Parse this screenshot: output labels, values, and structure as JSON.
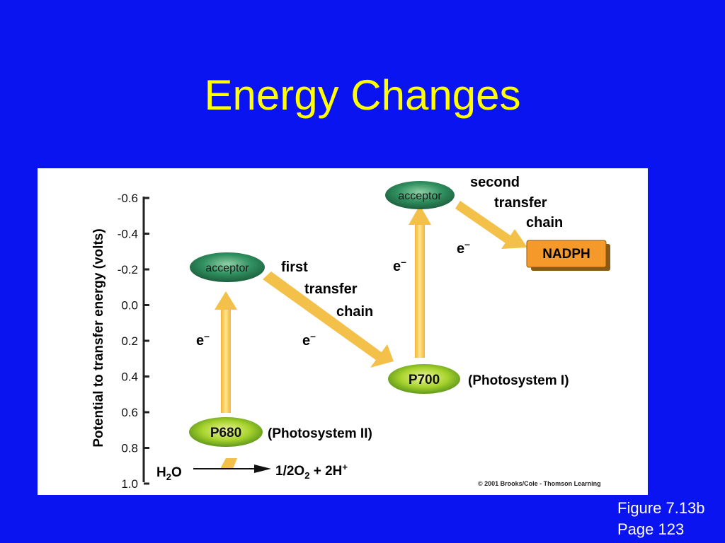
{
  "slide": {
    "title": "Energy Changes",
    "caption_line1": "Figure 7.13b",
    "caption_line2": "Page 123"
  },
  "colors": {
    "background": "#0a14f0",
    "title": "#ffff00",
    "arrow": "#f7c948",
    "acceptor": "#2f8f5f",
    "photosystem": "#a6d22c",
    "nadph_box": "#f59a2a"
  },
  "diagram": {
    "y_axis_label": "Potential to transfer energy (volts)",
    "y_ticks": [
      "-0.6",
      "-0.4",
      "-0.2",
      "0.0",
      "0.2",
      "0.4",
      "0.6",
      "0.8",
      "1.0"
    ],
    "acceptor1_label": "acceptor",
    "acceptor2_label": "acceptor",
    "p680_label": "P680",
    "p700_label": "P700",
    "photosystem2_label": "(Photosystem II)",
    "photosystem1_label": "(Photosystem I)",
    "first_chain": [
      "first",
      "transfer",
      "chain"
    ],
    "second_chain": [
      "second",
      "transfer",
      "chain"
    ],
    "electron": "e",
    "electron_sup": "–",
    "nadph_label": "NADPH",
    "water_main": "H",
    "water_sub": "2",
    "water_end": "O",
    "products_a": "1/2O",
    "products_sub": "2",
    "products_b": " + 2H",
    "products_sup": "+",
    "copyright": "© 2001 Brooks/Cole - Thomson Learning"
  }
}
